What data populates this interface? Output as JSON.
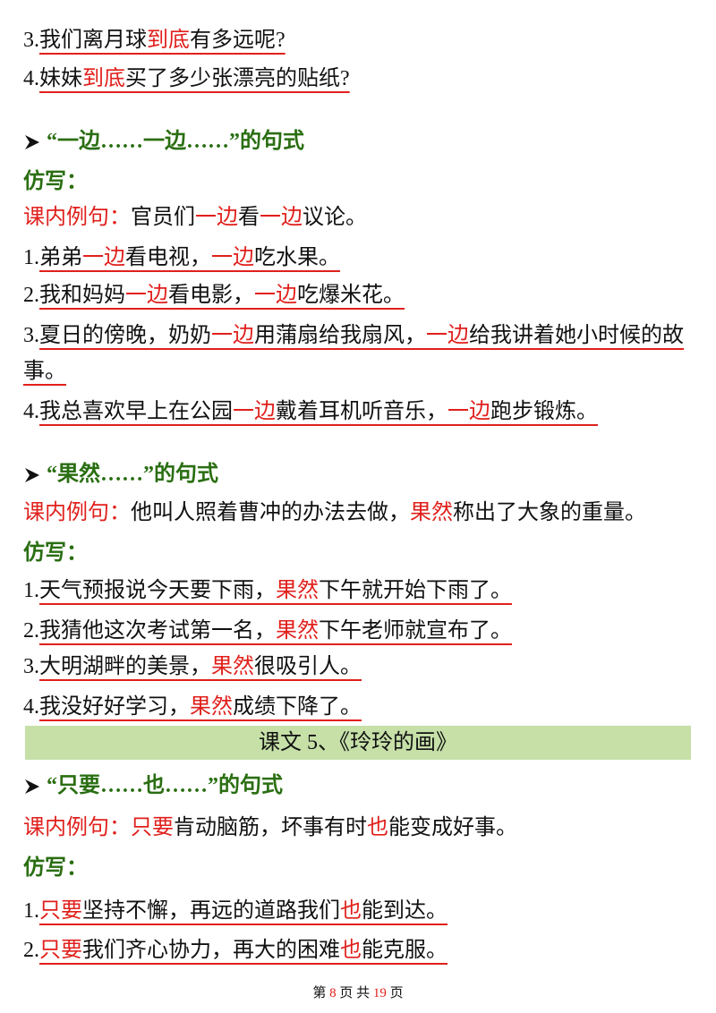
{
  "lines": [
    {
      "style": "item",
      "number": "3.",
      "segments": [
        {
          "text": "我们离月球",
          "color": "#111111"
        },
        {
          "text": "到底",
          "color": "#e0201c"
        },
        {
          "text": "有多远呢?",
          "color": "#111111"
        }
      ]
    },
    {
      "style": "item",
      "number": "4.",
      "segments": [
        {
          "text": "妹妹",
          "color": "#111111"
        },
        {
          "text": "到底",
          "color": "#e0201c"
        },
        {
          "text": "买了多少张漂亮的贴纸?",
          "color": "#111111"
        }
      ]
    },
    {
      "style": "heading",
      "segments": [
        {
          "text": "“一边……一边……”的句式",
          "color": "#2a6e12"
        }
      ]
    },
    {
      "style": "label",
      "segments": [
        {
          "text": "仿写：",
          "color": "#2a6e12"
        }
      ]
    },
    {
      "style": "example",
      "segments": [
        {
          "text": "课内例句：",
          "color": "#e0201c"
        },
        {
          "text": "官员们",
          "color": "#111111"
        },
        {
          "text": "一边",
          "color": "#e0201c"
        },
        {
          "text": "看",
          "color": "#111111"
        },
        {
          "text": "一边",
          "color": "#e0201c"
        },
        {
          "text": "议论。",
          "color": "#111111"
        }
      ]
    },
    {
      "style": "item",
      "number": "1.",
      "segments": [
        {
          "text": "弟弟",
          "color": "#111111"
        },
        {
          "text": "一边",
          "color": "#e0201c"
        },
        {
          "text": "看电视，",
          "color": "#111111"
        },
        {
          "text": "一边",
          "color": "#e0201c"
        },
        {
          "text": "吃水果。",
          "color": "#111111"
        }
      ]
    },
    {
      "style": "item",
      "number": "2.",
      "segments": [
        {
          "text": "我和妈妈",
          "color": "#111111"
        },
        {
          "text": "一边",
          "color": "#e0201c"
        },
        {
          "text": "看电影，",
          "color": "#111111"
        },
        {
          "text": "一边",
          "color": "#e0201c"
        },
        {
          "text": "吃爆米花。",
          "color": "#111111"
        }
      ]
    },
    {
      "style": "item",
      "number": "3.",
      "segments": [
        {
          "text": "夏日的傍晚，奶奶",
          "color": "#111111"
        },
        {
          "text": "一边",
          "color": "#e0201c"
        },
        {
          "text": "用蒲扇给我扇风，",
          "color": "#111111"
        },
        {
          "text": "一边",
          "color": "#e0201c"
        },
        {
          "text": "给我讲着她小时候的故事。",
          "color": "#111111"
        }
      ]
    },
    {
      "style": "item",
      "number": "4.",
      "segments": [
        {
          "text": "我总喜欢早上在公园",
          "color": "#111111"
        },
        {
          "text": "一边",
          "color": "#e0201c"
        },
        {
          "text": "戴着耳机听音乐，",
          "color": "#111111"
        },
        {
          "text": "一边",
          "color": "#e0201c"
        },
        {
          "text": "跑步锻炼。",
          "color": "#111111"
        }
      ]
    },
    {
      "style": "heading",
      "segments": [
        {
          "text": "“果然……”的句式",
          "color": "#2a6e12"
        }
      ]
    },
    {
      "style": "example",
      "segments": [
        {
          "text": "课内例句：",
          "color": "#e0201c"
        },
        {
          "text": "他叫人照着曹冲的办法去做，",
          "color": "#111111"
        },
        {
          "text": "果然",
          "color": "#e0201c"
        },
        {
          "text": "称出了大象的重量。",
          "color": "#111111"
        }
      ]
    },
    {
      "style": "label",
      "segments": [
        {
          "text": "仿写：",
          "color": "#2a6e12"
        }
      ]
    },
    {
      "style": "item",
      "number": "1.",
      "segments": [
        {
          "text": "天气预报说今天要下雨，",
          "color": "#111111"
        },
        {
          "text": "果然",
          "color": "#e0201c"
        },
        {
          "text": "下午就开始下雨了。",
          "color": "#111111"
        }
      ]
    },
    {
      "style": "item",
      "number": "2.",
      "segments": [
        {
          "text": "我猜他这次考试第一名，",
          "color": "#111111"
        },
        {
          "text": "果然",
          "color": "#e0201c"
        },
        {
          "text": "下午老师就宣布了。",
          "color": "#111111"
        }
      ]
    },
    {
      "style": "item",
      "number": "3.",
      "segments": [
        {
          "text": "大明湖畔的美景，",
          "color": "#111111"
        },
        {
          "text": "果然",
          "color": "#e0201c"
        },
        {
          "text": "很吸引人。",
          "color": "#111111"
        }
      ]
    },
    {
      "style": "item",
      "number": "4.",
      "segments": [
        {
          "text": "我没好好学习，",
          "color": "#111111"
        },
        {
          "text": "果然",
          "color": "#e0201c"
        },
        {
          "text": "成绩下降了。",
          "color": "#111111"
        }
      ]
    },
    {
      "style": "banner",
      "segments": [
        {
          "text": "课文 5、《玲玲的画》",
          "color": "#111111"
        }
      ]
    },
    {
      "style": "heading",
      "segments": [
        {
          "text": "“只要……也……”的句式",
          "color": "#2a6e12"
        }
      ]
    },
    {
      "style": "example",
      "segments": [
        {
          "text": "课内例句：",
          "color": "#e0201c"
        },
        {
          "text": "只要",
          "color": "#e0201c"
        },
        {
          "text": "肯动脑筋，坏事有时",
          "color": "#111111"
        },
        {
          "text": "也",
          "color": "#e0201c"
        },
        {
          "text": "能变成好事。",
          "color": "#111111"
        }
      ]
    },
    {
      "style": "label",
      "segments": [
        {
          "text": "仿写：",
          "color": "#2a6e12"
        }
      ]
    },
    {
      "style": "item",
      "number": "1.",
      "segments": [
        {
          "text": "只要",
          "color": "#e0201c"
        },
        {
          "text": "坚持不懈，再远的道路我们",
          "color": "#111111"
        },
        {
          "text": "也",
          "color": "#e0201c"
        },
        {
          "text": "能到达。",
          "color": "#111111"
        }
      ]
    },
    {
      "style": "item",
      "number": "2.",
      "segments": [
        {
          "text": "只要",
          "color": "#e0201c"
        },
        {
          "text": "我们齐心协力，再大的困难",
          "color": "#111111"
        },
        {
          "text": "也",
          "color": "#e0201c"
        },
        {
          "text": "能克服。",
          "color": "#111111"
        }
      ]
    }
  ],
  "footer": {
    "segments": [
      {
        "text": "第 ",
        "color": "#111111"
      },
      {
        "text": "8",
        "color": "#e0201c"
      },
      {
        "text": " 页 共 ",
        "color": "#111111"
      },
      {
        "text": "19",
        "color": "#e0201c"
      },
      {
        "text": " 页",
        "color": "#111111"
      }
    ]
  }
}
